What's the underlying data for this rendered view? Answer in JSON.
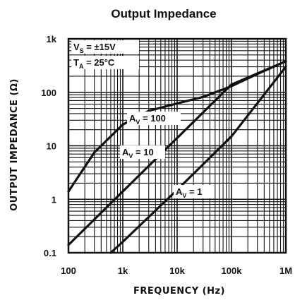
{
  "chart_data": {
    "type": "line",
    "title": "Output Impedance",
    "xlabel": "FREQUENCY (Hz)",
    "ylabel": "OUTPUT IMPEDANCE (Ω)",
    "xscale": "log",
    "yscale": "log",
    "xlim": [
      100,
      1000000
    ],
    "ylim": [
      0.1,
      1000
    ],
    "grid": true,
    "x_ticks": [
      "100",
      "1k",
      "10k",
      "100k",
      "1M"
    ],
    "y_ticks": [
      "0.1",
      "1",
      "10",
      "100",
      "1k"
    ],
    "conditions": {
      "vs_main": "V",
      "vs_sub": "S",
      "vs_rest": " = ±15V",
      "ta_main": "T",
      "ta_sub": "A",
      "ta_rest": " = 25°C"
    },
    "series": [
      {
        "name": "AV = 100",
        "label_main": "A",
        "label_sub": "V",
        "label_rest": " = 100",
        "x": [
          100,
          300,
          1000,
          3000,
          10000,
          30000,
          100000,
          300000,
          1000000
        ],
        "y": [
          1.4,
          7.5,
          25,
          45,
          62,
          82,
          130,
          220,
          380
        ]
      },
      {
        "name": "AV = 10",
        "label_main": "A",
        "label_sub": "V",
        "label_rest": " = 10",
        "x": [
          100,
          1000,
          10000,
          100000,
          1000000
        ],
        "y": [
          0.14,
          1.4,
          14,
          140,
          380
        ]
      },
      {
        "name": "AV = 1",
        "label_main": "A",
        "label_sub": "V",
        "label_rest": " = 1",
        "x": [
          600,
          1000,
          10000,
          100000,
          1000000
        ],
        "y": [
          0.1,
          0.16,
          1.5,
          15,
          300
        ]
      }
    ],
    "colors": {
      "line": "#111111",
      "grid": "#111111",
      "background": "#ffffff"
    }
  }
}
